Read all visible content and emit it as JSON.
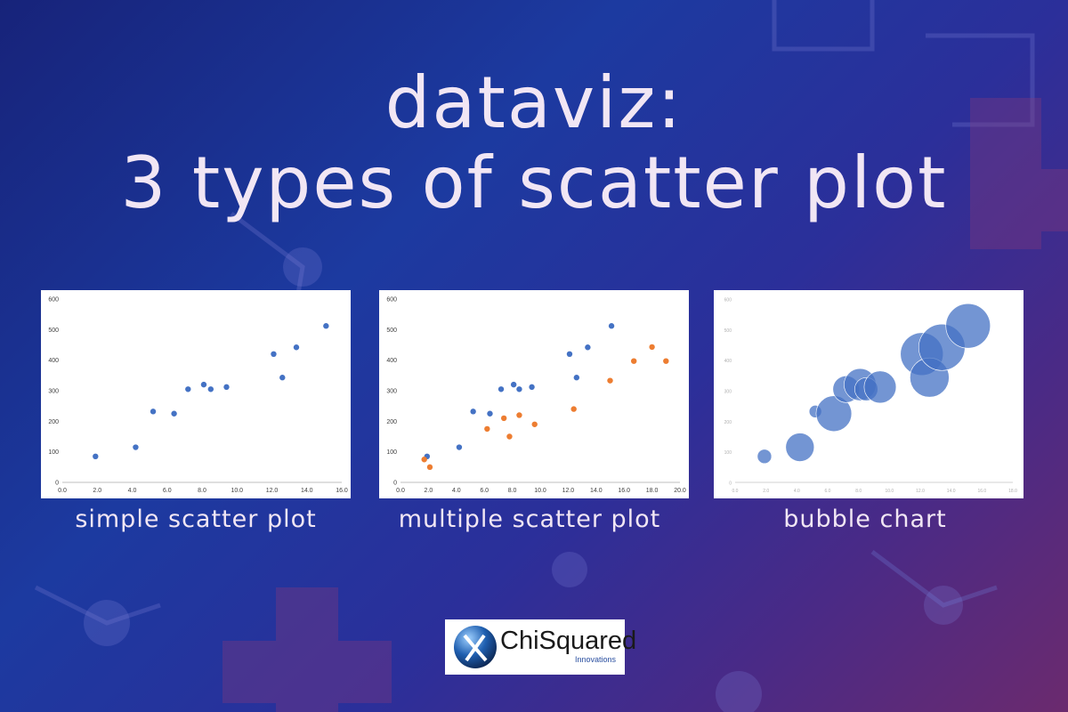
{
  "title_line1": "dataviz:",
  "title_line2": "3 types of scatter plot",
  "captions": [
    "simple scatter plot",
    "multiple scatter plot",
    "bubble chart"
  ],
  "logo": {
    "name": "ChiSquared",
    "subtitle": "Innovations"
  },
  "colors": {
    "blue": "#4472c4",
    "orange": "#ed7d31",
    "text": "#f1e6f4"
  },
  "chart_data": [
    {
      "type": "scatter",
      "title": "",
      "xlabel": "",
      "ylabel": "",
      "xlim": [
        0,
        16
      ],
      "ylim": [
        0,
        600
      ],
      "xticks": [
        "0.0",
        "2.0",
        "4.0",
        "6.0",
        "8.0",
        "10.0",
        "12.0",
        "14.0",
        "16.0"
      ],
      "yticks": [
        "0",
        "100",
        "200",
        "300",
        "400",
        "500",
        "600"
      ],
      "grid": false,
      "series": [
        {
          "color": "#4472c4",
          "x": [
            1.9,
            4.2,
            5.2,
            6.4,
            7.2,
            8.1,
            8.5,
            9.4,
            12.1,
            12.6,
            13.4,
            15.1
          ],
          "y": [
            85,
            115,
            232,
            225,
            305,
            320,
            305,
            312,
            420,
            343,
            442,
            512
          ]
        }
      ]
    },
    {
      "type": "scatter",
      "title": "",
      "xlabel": "",
      "ylabel": "",
      "xlim": [
        0,
        20
      ],
      "ylim": [
        0,
        600
      ],
      "xticks": [
        "0.0",
        "2.0",
        "4.0",
        "6.0",
        "8.0",
        "10.0",
        "12.0",
        "14.0",
        "16.0",
        "18.0",
        "20.0"
      ],
      "yticks": [
        "0",
        "100",
        "200",
        "300",
        "400",
        "500",
        "600"
      ],
      "grid": false,
      "series": [
        {
          "color": "#4472c4",
          "x": [
            1.9,
            4.2,
            5.2,
            6.4,
            7.2,
            8.1,
            8.5,
            9.4,
            12.1,
            12.6,
            13.4,
            15.1
          ],
          "y": [
            85,
            115,
            232,
            225,
            305,
            320,
            305,
            312,
            420,
            343,
            442,
            512
          ]
        },
        {
          "color": "#ed7d31",
          "x": [
            1.7,
            2.1,
            6.2,
            7.4,
            7.8,
            8.5,
            9.6,
            12.4,
            15.0,
            16.7,
            18.0,
            19.0
          ],
          "y": [
            75,
            50,
            175,
            210,
            150,
            220,
            190,
            240,
            333,
            397,
            443,
            397
          ]
        }
      ]
    },
    {
      "type": "scatter",
      "subtype": "bubble",
      "title": "",
      "xlabel": "",
      "ylabel": "",
      "xlim": [
        0,
        18
      ],
      "ylim": [
        0,
        600
      ],
      "xticks": [
        "0.0",
        "2.0",
        "4.0",
        "6.0",
        "8.0",
        "10.0",
        "12.0",
        "14.0",
        "16.0",
        "18.0"
      ],
      "yticks": [
        "0",
        "100",
        "200",
        "300",
        "400",
        "500",
        "600"
      ],
      "grid": false,
      "series": [
        {
          "color": "#4472c4",
          "x": [
            1.9,
            4.2,
            5.2,
            6.4,
            7.2,
            8.1,
            8.5,
            9.4,
            12.1,
            12.6,
            13.4,
            15.1
          ],
          "y": [
            85,
            115,
            232,
            225,
            305,
            320,
            305,
            312,
            420,
            343,
            442,
            512
          ],
          "size": [
            8,
            16,
            7,
            20,
            15,
            18,
            13,
            18,
            24,
            22,
            26,
            25
          ]
        }
      ]
    }
  ]
}
